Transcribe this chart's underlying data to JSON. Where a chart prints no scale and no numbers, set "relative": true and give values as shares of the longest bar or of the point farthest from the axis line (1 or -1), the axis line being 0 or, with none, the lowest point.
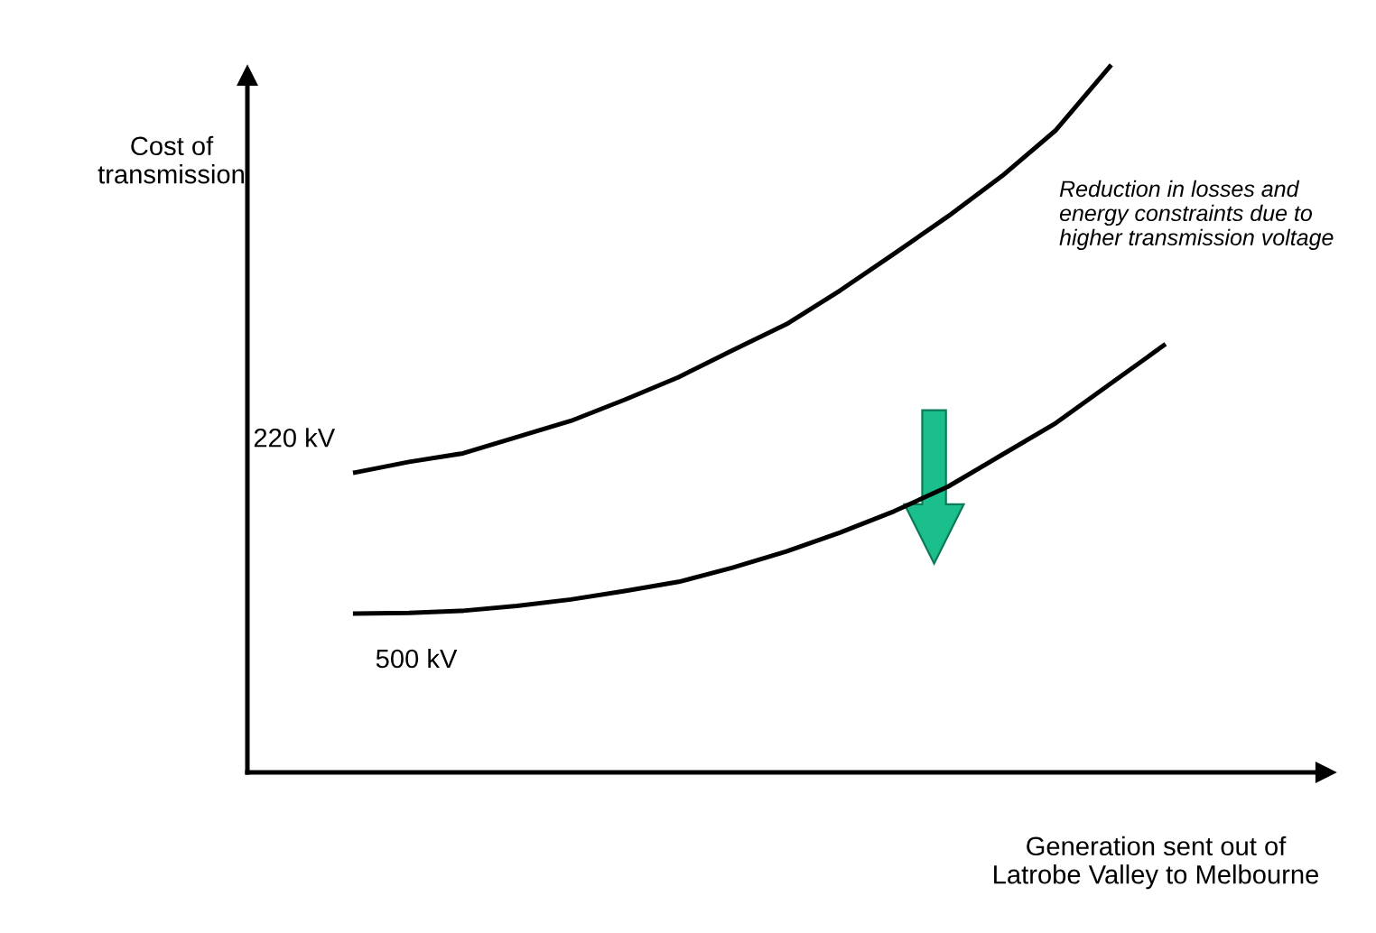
{
  "chart_data": {
    "type": "line",
    "relative": true,
    "ylabel": "Cost of\ntransmission",
    "xlabel": "Generation sent out of\nLatrobe Valley to Melbourne",
    "legend": false,
    "marker": "none",
    "line_style": "solid",
    "categories": [
      null,
      null,
      null,
      null,
      null,
      null,
      null,
      null,
      null,
      null,
      null,
      null,
      null,
      null,
      null,
      null
    ],
    "annotations": [
      "Reduction in losses and\nenergy constraints due to\nhigher transmission voltage"
    ],
    "series": [
      {
        "name": "220 kV",
        "color": "#000000",
        "values": [
          0.425,
          0.44,
          0.452,
          0.475,
          0.498,
          0.528,
          0.56,
          0.598,
          0.635,
          0.683,
          0.735,
          0.788,
          0.845,
          0.91,
          1,
          null
        ]
      },
      {
        "name": "500 kV",
        "color": "#000000",
        "values": [
          0.225,
          0.226,
          0.229,
          0.236,
          0.245,
          0.257,
          0.27,
          0.29,
          0.313,
          0.34,
          0.37,
          0.405,
          0.45,
          0.495,
          0.55,
          0.605
        ]
      }
    ]
  }
}
